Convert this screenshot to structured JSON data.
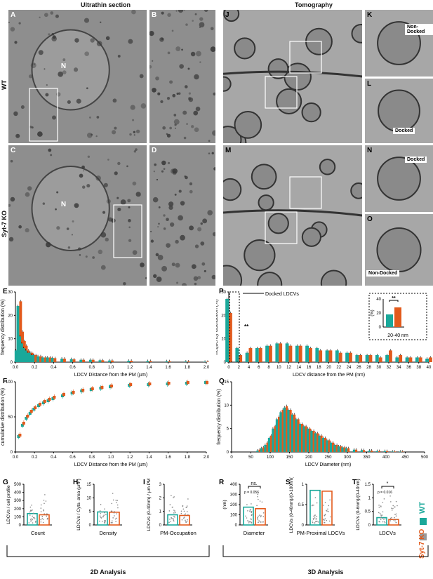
{
  "headers": {
    "ultrathin": "Ultrathin section",
    "tomography": "Tomography"
  },
  "row_labels": {
    "wt": "WT",
    "ko": "Syt-7 KO"
  },
  "image_panels": [
    {
      "id": "A",
      "type": "em",
      "nucleus": "N"
    },
    {
      "id": "B",
      "type": "em"
    },
    {
      "id": "C",
      "type": "em",
      "nucleus": "N"
    },
    {
      "id": "D",
      "type": "em"
    },
    {
      "id": "J",
      "type": "tomo"
    },
    {
      "id": "K",
      "type": "tomo",
      "tag": "Non-Docked"
    },
    {
      "id": "L",
      "type": "tomo",
      "tag": "Docked"
    },
    {
      "id": "M",
      "type": "tomo"
    },
    {
      "id": "N",
      "type": "tomo",
      "tag": "Docked"
    },
    {
      "id": "O",
      "type": "tomo",
      "tag": "Non-Docked"
    }
  ],
  "colors": {
    "wt": "#1aa89a",
    "ko": "#e25a1c",
    "em_dark": "#3a3a3a",
    "tomo_dark": "#555555"
  },
  "footers": {
    "analysis2d": "2D Analysis",
    "analysis3d": "3D Analysis"
  },
  "legend": {
    "wt": "WT",
    "ko": "Syt-7 KO"
  },
  "chart_data": [
    {
      "id": "E",
      "type": "bar",
      "xlabel": "LDCV Distance from the PM (µm)",
      "ylabel": "frequency distribution (%)",
      "xlim": [
        0,
        2.0
      ],
      "ylim": [
        0,
        30
      ],
      "xticks": [
        "0.0",
        "0.2",
        "0.4",
        "0.6",
        "0.8",
        "1.0",
        "1.2",
        "1.4",
        "1.6",
        "1.8",
        "2.0"
      ],
      "yticks": [
        0,
        10,
        20,
        30
      ],
      "x": [
        0.02,
        0.04,
        0.06,
        0.08,
        0.1,
        0.12,
        0.14,
        0.16,
        0.18,
        0.2,
        0.25,
        0.3,
        0.35,
        0.4,
        0.5,
        0.6,
        0.7,
        0.8,
        0.9,
        1.0,
        1.2,
        1.4,
        1.6,
        1.8,
        2.0
      ],
      "series": [
        {
          "name": "WT",
          "values": [
            5,
            24,
            11,
            8,
            6,
            5,
            4,
            4,
            3,
            3,
            2.5,
            2,
            2,
            1.8,
            1.5,
            1.3,
            1,
            1,
            0.8,
            0.7,
            0.6,
            0.5,
            0.4,
            0.3,
            0.2
          ]
        },
        {
          "name": "Syt-7 KO",
          "values": [
            6,
            26,
            13,
            9,
            7,
            5,
            4,
            4,
            3,
            3,
            2.5,
            2,
            2,
            1.7,
            1.5,
            1.2,
            1,
            1,
            0.8,
            0.7,
            0.6,
            0.5,
            0.4,
            0.3,
            0.2
          ]
        }
      ]
    },
    {
      "id": "F",
      "type": "line",
      "xlabel": "LDCV Distance from the PM (µm)",
      "ylabel": "cumulative distribution (%)",
      "xlim": [
        0,
        2.0
      ],
      "ylim": [
        0,
        100
      ],
      "xticks": [
        "0.0",
        "0.2",
        "0.4",
        "0.6",
        "0.8",
        "1.0",
        "1.2",
        "1.4",
        "1.6",
        "1.8",
        "2.0"
      ],
      "yticks": [
        0,
        50,
        100
      ],
      "x": [
        0.04,
        0.08,
        0.12,
        0.16,
        0.2,
        0.25,
        0.3,
        0.35,
        0.4,
        0.5,
        0.6,
        0.7,
        0.8,
        0.9,
        1.0,
        1.2,
        1.4,
        1.6,
        1.8,
        2.0
      ],
      "series": [
        {
          "name": "WT",
          "values": [
            22,
            38,
            48,
            55,
            61,
            66,
            70,
            73,
            76,
            80,
            84,
            87,
            89,
            91,
            93,
            95,
            96,
            97,
            98,
            99
          ]
        },
        {
          "name": "Syt-7 KO",
          "values": [
            24,
            41,
            51,
            58,
            63,
            68,
            72,
            75,
            78,
            82,
            85,
            88,
            90,
            92,
            94,
            96,
            97,
            98,
            99,
            99
          ]
        }
      ]
    },
    {
      "id": "P",
      "type": "bar",
      "xlabel": "LDCV distance from the PM (nm)",
      "ylabel": "frequency distribution (%)",
      "xlim": [
        0,
        40
      ],
      "ylim": [
        0,
        30
      ],
      "xticks": [
        "0",
        "2",
        "4",
        "6",
        "8",
        "10",
        "12",
        "14",
        "16",
        "18",
        "20",
        "22",
        "24",
        "26",
        "28",
        "30",
        "32",
        "34",
        "36",
        "38",
        "40"
      ],
      "yticks": [
        0,
        10,
        20,
        30
      ],
      "x": [
        0,
        2,
        4,
        6,
        8,
        10,
        12,
        14,
        16,
        18,
        20,
        22,
        24,
        26,
        28,
        30,
        32,
        34,
        36,
        38,
        40
      ],
      "series": [
        {
          "name": "WT",
          "values": [
            27,
            6,
            4,
            6,
            7,
            8,
            8,
            7,
            7,
            6,
            5,
            5,
            4,
            3,
            3,
            3,
            3,
            2,
            2,
            2,
            1.5
          ]
        },
        {
          "name": "Syt-7 KO",
          "values": [
            21,
            3,
            6,
            6,
            7,
            8,
            7,
            7,
            6,
            5,
            5,
            4,
            4,
            3,
            3,
            2,
            5,
            3,
            2,
            2,
            2
          ]
        }
      ],
      "annotation": "Docked LDCVs",
      "significance": "**",
      "inset": {
        "label": "20-40 nm",
        "ylabel": "(%)",
        "ylim": [
          0,
          40
        ],
        "yticks": [
          0,
          20,
          40
        ],
        "values": [
          {
            "name": "WT",
            "value": 18
          },
          {
            "name": "Syt-7 KO",
            "value": 28
          }
        ],
        "significance": "**"
      }
    },
    {
      "id": "Q",
      "type": "bar",
      "xlabel": "LDCV Diameter (nm)",
      "ylabel": "frequency distribution (%)",
      "xlim": [
        0,
        500
      ],
      "ylim": [
        0,
        15
      ],
      "xticks": [
        "0",
        "50",
        "100",
        "150",
        "200",
        "250",
        "300",
        "350",
        "400",
        "450",
        "500"
      ],
      "yticks": [
        0,
        5,
        10,
        15
      ],
      "x": [
        70,
        80,
        90,
        100,
        110,
        120,
        130,
        140,
        150,
        160,
        170,
        180,
        190,
        200,
        210,
        220,
        230,
        240,
        250,
        260,
        270,
        280,
        290,
        300,
        320,
        340,
        360,
        380,
        400,
        420,
        440
      ],
      "series": [
        {
          "name": "WT",
          "values": [
            0.3,
            0.8,
            1.5,
            3,
            5,
            7,
            8.5,
            9.5,
            9,
            8,
            7,
            6,
            5.5,
            5,
            4.5,
            4,
            3.5,
            3,
            2.5,
            2,
            1.5,
            1.2,
            1,
            0.8,
            0.5,
            0.4,
            0.3,
            0.2,
            0.2,
            0.1,
            0.1
          ]
        },
        {
          "name": "Syt-7 KO",
          "values": [
            0.5,
            1,
            2,
            3.5,
            5.5,
            7.5,
            9,
            9.8,
            9,
            8,
            7,
            6,
            5.5,
            5,
            4.5,
            4,
            3.5,
            3,
            2.5,
            2,
            1.5,
            1.2,
            1,
            0.8,
            0.5,
            0.4,
            0.3,
            0.2,
            0.2,
            0.1,
            0.1
          ]
        }
      ]
    },
    {
      "id": "G",
      "type": "bar",
      "xlabel": "Count",
      "ylabel": "LDCVs / cell profile",
      "ylim": [
        0,
        500
      ],
      "yticks": [
        0,
        100,
        200,
        300,
        400,
        500
      ],
      "categories": [
        "WT",
        "Syt-7 KO"
      ],
      "values": [
        140,
        125
      ]
    },
    {
      "id": "H",
      "type": "bar",
      "xlabel": "Density",
      "ylabel": "LDCVs / Cyto. area (µm²)",
      "ylim": [
        0,
        15
      ],
      "yticks": [
        0,
        5,
        10,
        15
      ],
      "categories": [
        "WT",
        "Syt-7 KO"
      ],
      "values": [
        4.8,
        4.7
      ]
    },
    {
      "id": "I",
      "type": "bar",
      "xlabel": "PM-Occupation",
      "ylabel": "LDCVs (0-40nm) / µm PM",
      "ylim": [
        0,
        3
      ],
      "yticks": [
        0,
        1,
        2,
        3
      ],
      "categories": [
        "WT",
        "Syt-7 KO"
      ],
      "values": [
        0.75,
        0.7
      ]
    },
    {
      "id": "R",
      "type": "bar",
      "xlabel": "Diameter",
      "ylabel": "(nm)",
      "ylim": [
        0,
        400
      ],
      "yticks": [
        0,
        100,
        200,
        300,
        400
      ],
      "categories": [
        "WT",
        "Syt-7 KO"
      ],
      "values": [
        175,
        160
      ],
      "significance": "ns.",
      "pvalue": "p = 0.056"
    },
    {
      "id": "S",
      "type": "bar",
      "xlabel": "PM-Proximal LDCVs",
      "ylabel": "LDCVs (0-40nm)/(0-100nm)",
      "ylim": [
        0,
        1.0
      ],
      "yticks": [
        0.0,
        0.5,
        1.0
      ],
      "categories": [
        "WT",
        "Syt-7 KO"
      ],
      "values": [
        0.85,
        0.83
      ]
    },
    {
      "id": "T",
      "type": "bar",
      "xlabel": "LDCVs",
      "ylabel": "LDCVs (0-6nm)/(0-40nm)",
      "ylim": [
        0,
        1.5
      ],
      "yticks": [
        0.0,
        0.5,
        1.0,
        1.5
      ],
      "categories": [
        "WT",
        "Syt-7 KO"
      ],
      "values": [
        0.27,
        0.2
      ],
      "significance": "*",
      "pvalue": "p = 0.016"
    }
  ]
}
